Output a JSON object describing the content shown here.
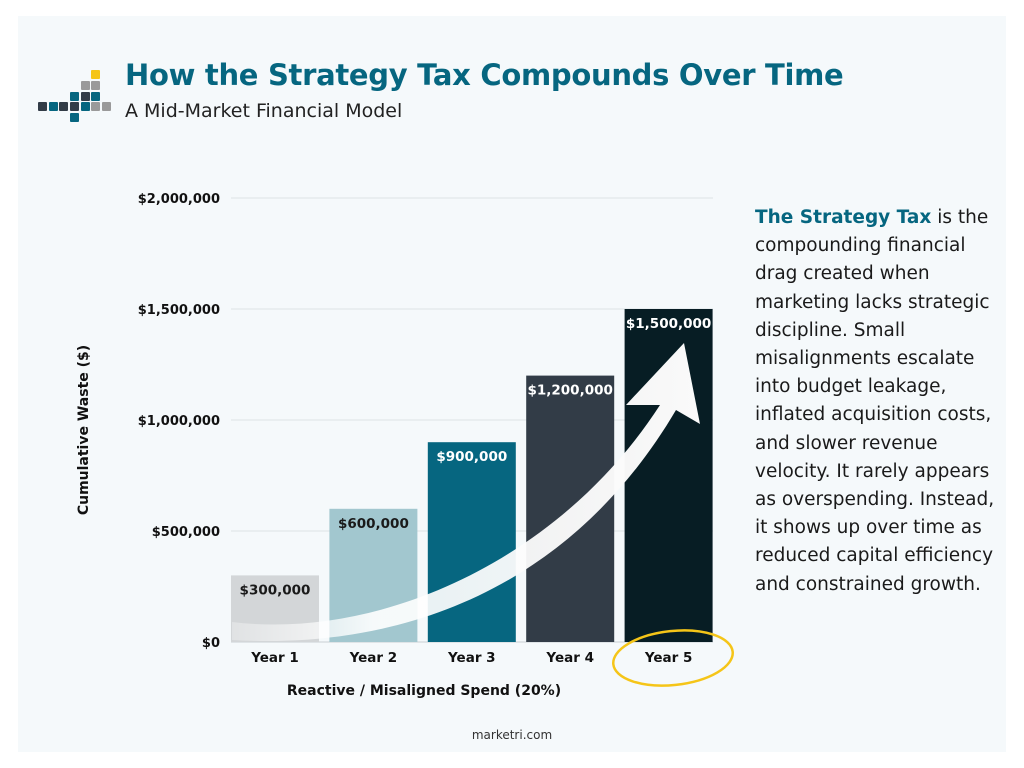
{
  "header": {
    "title": "How the Strategy Tax Compounds Over Time",
    "subtitle": "A Mid-Market Financial Model"
  },
  "sidebar": {
    "highlight": "The Strategy Tax",
    "body": " is the compounding financial drag created when marketing lacks strategic discipline. Small misalignments escalate into budget leakage, inflated acquisition costs, and slower revenue velocity. It rarely appears as overspending. Instead, it shows up over time as reduced capital efficiency and constrained growth."
  },
  "footer": {
    "text": "marketri.com"
  },
  "colors": {
    "brand": "#066680",
    "accent": "#f5c518"
  },
  "chart_data": {
    "type": "bar",
    "categories": [
      "Year 1",
      "Year 2",
      "Year 3",
      "Year 4",
      "Year 5"
    ],
    "values": [
      300000,
      600000,
      900000,
      1200000,
      1500000
    ],
    "data_labels": [
      "$300,000",
      "$600,000",
      "$900,000",
      "$1,200,000",
      "$1,500,000"
    ],
    "bar_colors": [
      "#d3d6d8",
      "#a2c7cf",
      "#066680",
      "#323c47",
      "#071d24"
    ],
    "label_colors": [
      "#1a1a1a",
      "#1a1a1a",
      "#ffffff",
      "#ffffff",
      "#ffffff"
    ],
    "xlabel": "Reactive / Misaligned Spend (20%)",
    "ylabel": "Cumulative Waste ($)",
    "ylim": [
      0,
      2000000
    ],
    "yticks": [
      0,
      500000,
      1000000,
      1500000,
      2000000
    ],
    "ytick_labels": [
      "$0",
      "$500,000",
      "$1,000,000",
      "$1,500,000",
      "$2,000,000"
    ],
    "grid": true,
    "highlighted_category": "Year 5",
    "annotation": "upward trend arrow"
  }
}
